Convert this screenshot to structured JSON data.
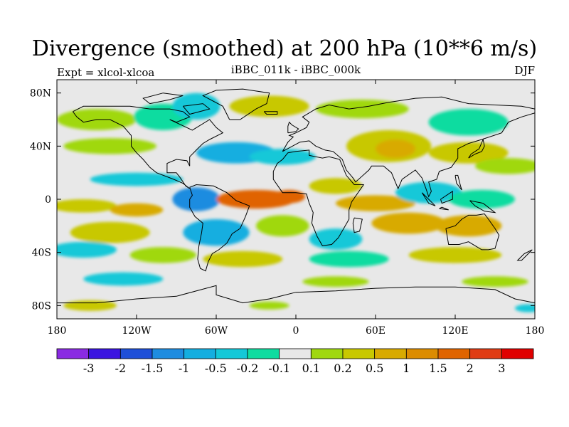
{
  "title": "Divergence (smoothed) at 200 hPa (10**6 m/s)",
  "experiment_label": "Expt = xlcol-xlcoa",
  "center_label": "iBBC_011k - iBBC_000k",
  "season_label": "DJF",
  "axes": {
    "y_ticks": [
      {
        "label": "80N",
        "lat": 80
      },
      {
        "label": "40N",
        "lat": 40
      },
      {
        "label": "0",
        "lat": 0
      },
      {
        "label": "40S",
        "lat": -40
      },
      {
        "label": "80S",
        "lat": -80
      }
    ],
    "x_ticks": [
      {
        "label": "180",
        "lon": -180
      },
      {
        "label": "120W",
        "lon": -120
      },
      {
        "label": "60W",
        "lon": -60
      },
      {
        "label": "0",
        "lon": 0
      },
      {
        "label": "60E",
        "lon": 60
      },
      {
        "label": "120E",
        "lon": 120
      },
      {
        "label": "180",
        "lon": 180
      }
    ]
  },
  "colorbar": {
    "colors": [
      "#8a2be2",
      "#3b15e0",
      "#1e4fd8",
      "#1e8ce0",
      "#14aee0",
      "#14c8d8",
      "#10dca0",
      "#e8e8e8",
      "#a0d810",
      "#c8c800",
      "#d8aa00",
      "#dc8c00",
      "#e06400",
      "#e03c14",
      "#e00000"
    ],
    "labels": [
      "-3",
      "-2",
      "-1.5",
      "-1",
      "-0.5",
      "-0.2",
      "-0.1",
      "0.1",
      "0.2",
      "0.5",
      "1",
      "1.5",
      "2",
      "3"
    ]
  },
  "map_data": {
    "background_color": "#e8e8e8",
    "colors": {
      "green": "#a0d810",
      "yellow": "#c8c800",
      "orange": "#d8aa00",
      "red": "#e06400",
      "cyan": "#14c8d8",
      "teal": "#10dca0",
      "lightblue": "#14aee0",
      "blue": "#1e8ce0"
    },
    "blobs": [
      {
        "lon": -150,
        "lat": 60,
        "rlon": 30,
        "rlat": 8,
        "color": "green"
      },
      {
        "lon": -100,
        "lat": 62,
        "rlon": 22,
        "rlat": 10,
        "color": "teal"
      },
      {
        "lon": -75,
        "lat": 70,
        "rlon": 18,
        "rlat": 10,
        "color": "cyan"
      },
      {
        "lon": -20,
        "lat": 70,
        "rlon": 30,
        "rlat": 8,
        "color": "yellow"
      },
      {
        "lon": 50,
        "lat": 68,
        "rlon": 35,
        "rlat": 7,
        "color": "green"
      },
      {
        "lon": 130,
        "lat": 58,
        "rlon": 30,
        "rlat": 10,
        "color": "teal"
      },
      {
        "lon": -140,
        "lat": 40,
        "rlon": 35,
        "rlat": 6,
        "color": "green"
      },
      {
        "lon": -45,
        "lat": 35,
        "rlon": 30,
        "rlat": 8,
        "color": "lightblue"
      },
      {
        "lon": -10,
        "lat": 32,
        "rlon": 25,
        "rlat": 6,
        "color": "cyan"
      },
      {
        "lon": 70,
        "lat": 40,
        "rlon": 32,
        "rlat": 12,
        "color": "yellow"
      },
      {
        "lon": 75,
        "lat": 38,
        "rlon": 15,
        "rlat": 7,
        "color": "orange"
      },
      {
        "lon": 130,
        "lat": 35,
        "rlon": 30,
        "rlat": 8,
        "color": "yellow"
      },
      {
        "lon": 160,
        "lat": 25,
        "rlon": 25,
        "rlat": 6,
        "color": "green"
      },
      {
        "lon": -120,
        "lat": 15,
        "rlon": 35,
        "rlat": 5,
        "color": "cyan"
      },
      {
        "lon": -75,
        "lat": 0,
        "rlon": 18,
        "rlat": 9,
        "color": "blue"
      },
      {
        "lon": -30,
        "lat": 0,
        "rlon": 30,
        "rlat": 7,
        "color": "red"
      },
      {
        "lon": -5,
        "lat": 2,
        "rlon": 12,
        "rlat": 5,
        "color": "red"
      },
      {
        "lon": 30,
        "lat": 10,
        "rlon": 20,
        "rlat": 6,
        "color": "yellow"
      },
      {
        "lon": 60,
        "lat": -3,
        "rlon": 30,
        "rlat": 6,
        "color": "orange"
      },
      {
        "lon": 100,
        "lat": 5,
        "rlon": 25,
        "rlat": 8,
        "color": "cyan"
      },
      {
        "lon": 140,
        "lat": 0,
        "rlon": 25,
        "rlat": 7,
        "color": "teal"
      },
      {
        "lon": -160,
        "lat": -5,
        "rlon": 25,
        "rlat": 5,
        "color": "yellow"
      },
      {
        "lon": -120,
        "lat": -8,
        "rlon": 20,
        "rlat": 5,
        "color": "orange"
      },
      {
        "lon": -140,
        "lat": -25,
        "rlon": 30,
        "rlat": 8,
        "color": "yellow"
      },
      {
        "lon": -60,
        "lat": -25,
        "rlon": 25,
        "rlat": 10,
        "color": "lightblue"
      },
      {
        "lon": -10,
        "lat": -20,
        "rlon": 20,
        "rlat": 8,
        "color": "green"
      },
      {
        "lon": 30,
        "lat": -30,
        "rlon": 20,
        "rlat": 8,
        "color": "cyan"
      },
      {
        "lon": 85,
        "lat": -18,
        "rlon": 28,
        "rlat": 8,
        "color": "orange"
      },
      {
        "lon": 130,
        "lat": -20,
        "rlon": 25,
        "rlat": 8,
        "color": "orange"
      },
      {
        "lon": -160,
        "lat": -38,
        "rlon": 25,
        "rlat": 6,
        "color": "cyan"
      },
      {
        "lon": -100,
        "lat": -42,
        "rlon": 25,
        "rlat": 6,
        "color": "green"
      },
      {
        "lon": -40,
        "lat": -45,
        "rlon": 30,
        "rlat": 6,
        "color": "yellow"
      },
      {
        "lon": 40,
        "lat": -45,
        "rlon": 30,
        "rlat": 6,
        "color": "teal"
      },
      {
        "lon": 120,
        "lat": -42,
        "rlon": 35,
        "rlat": 6,
        "color": "yellow"
      },
      {
        "lon": -130,
        "lat": -60,
        "rlon": 30,
        "rlat": 5,
        "color": "cyan"
      },
      {
        "lon": 30,
        "lat": -62,
        "rlon": 25,
        "rlat": 4,
        "color": "green"
      },
      {
        "lon": 150,
        "lat": -62,
        "rlon": 25,
        "rlat": 4,
        "color": "green"
      },
      {
        "lon": -155,
        "lat": -80,
        "rlon": 20,
        "rlat": 4,
        "color": "yellow"
      },
      {
        "lon": -20,
        "lat": -80,
        "rlon": 15,
        "rlat": 3,
        "color": "green"
      },
      {
        "lon": 175,
        "lat": -82,
        "rlon": 10,
        "rlat": 3,
        "color": "cyan"
      }
    ],
    "coastlines": [
      [
        [
          -168,
          66
        ],
        [
          -160,
          70
        ],
        [
          -140,
          70
        ],
        [
          -125,
          70
        ],
        [
          -110,
          68
        ],
        [
          -95,
          68
        ],
        [
          -85,
          66
        ],
        [
          -80,
          62
        ],
        [
          -90,
          58
        ],
        [
          -95,
          60
        ],
        [
          -78,
          52
        ],
        [
          -65,
          60
        ],
        [
          -60,
          54
        ],
        [
          -55,
          50
        ],
        [
          -65,
          45
        ],
        [
          -70,
          42
        ],
        [
          -75,
          37
        ],
        [
          -80,
          32
        ],
        [
          -80,
          25
        ],
        [
          -82,
          29
        ],
        [
          -90,
          30
        ],
        [
          -97,
          27
        ],
        [
          -97,
          20
        ],
        [
          -90,
          20
        ],
        [
          -87,
          16
        ],
        [
          -83,
          10
        ],
        [
          -80,
          8
        ],
        [
          -85,
          12
        ],
        [
          -92,
          15
        ],
        [
          -105,
          20
        ],
        [
          -110,
          24
        ],
        [
          -115,
          30
        ],
        [
          -120,
          35
        ],
        [
          -124,
          40
        ],
        [
          -124,
          48
        ],
        [
          -130,
          55
        ],
        [
          -140,
          60
        ],
        [
          -150,
          60
        ],
        [
          -160,
          58
        ],
        [
          -165,
          62
        ],
        [
          -168,
          66
        ]
      ],
      [
        [
          -80,
          9
        ],
        [
          -75,
          11
        ],
        [
          -62,
          10
        ],
        [
          -52,
          5
        ],
        [
          -45,
          -1
        ],
        [
          -35,
          -5
        ],
        [
          -38,
          -13
        ],
        [
          -42,
          -22
        ],
        [
          -48,
          -26
        ],
        [
          -52,
          -33
        ],
        [
          -58,
          -38
        ],
        [
          -63,
          -41
        ],
        [
          -66,
          -47
        ],
        [
          -68,
          -54
        ],
        [
          -72,
          -52
        ],
        [
          -74,
          -45
        ],
        [
          -73,
          -35
        ],
        [
          -71,
          -25
        ],
        [
          -70,
          -18
        ],
        [
          -76,
          -13
        ],
        [
          -80,
          -6
        ],
        [
          -80,
          0
        ],
        [
          -78,
          3
        ],
        [
          -80,
          9
        ]
      ],
      [
        [
          -50,
          60
        ],
        [
          -42,
          60
        ],
        [
          -30,
          68
        ],
        [
          -22,
          72
        ],
        [
          -20,
          80
        ],
        [
          -40,
          83
        ],
        [
          -60,
          82
        ],
        [
          -70,
          78
        ],
        [
          -55,
          70
        ],
        [
          -50,
          60
        ]
      ],
      [
        [
          -10,
          36
        ],
        [
          -6,
          43
        ],
        [
          -2,
          47
        ],
        [
          -5,
          48
        ],
        [
          0,
          50
        ],
        [
          8,
          54
        ],
        [
          10,
          58
        ],
        [
          5,
          62
        ],
        [
          15,
          68
        ],
        [
          25,
          71
        ],
        [
          40,
          68
        ],
        [
          55,
          70
        ],
        [
          70,
          73
        ],
        [
          90,
          76
        ],
        [
          110,
          77
        ],
        [
          130,
          72
        ],
        [
          150,
          71
        ],
        [
          170,
          70
        ],
        [
          180,
          68
        ],
        [
          180,
          65
        ],
        [
          170,
          62
        ],
        [
          160,
          58
        ],
        [
          155,
          50
        ],
        [
          140,
          45
        ],
        [
          130,
          42
        ],
        [
          122,
          38
        ],
        [
          122,
          31
        ],
        [
          117,
          24
        ],
        [
          108,
          21
        ],
        [
          106,
          15
        ],
        [
          100,
          13
        ],
        [
          102,
          6
        ],
        [
          100,
          2
        ],
        [
          98,
          8
        ],
        [
          95,
          16
        ],
        [
          90,
          22
        ],
        [
          80,
          15
        ],
        [
          77,
          8
        ],
        [
          72,
          20
        ],
        [
          66,
          25
        ],
        [
          57,
          25
        ],
        [
          55,
          22
        ],
        [
          45,
          13
        ],
        [
          43,
          16
        ],
        [
          38,
          22
        ],
        [
          35,
          30
        ],
        [
          28,
          36
        ],
        [
          22,
          37
        ],
        [
          15,
          40
        ],
        [
          10,
          44
        ],
        [
          3,
          43
        ],
        [
          -10,
          36
        ]
      ],
      [
        [
          -17,
          21
        ],
        [
          -17,
          15
        ],
        [
          -10,
          5
        ],
        [
          0,
          5
        ],
        [
          8,
          4
        ],
        [
          10,
          -3
        ],
        [
          13,
          -10
        ],
        [
          12,
          -18
        ],
        [
          16,
          -28
        ],
        [
          20,
          -35
        ],
        [
          27,
          -34
        ],
        [
          32,
          -29
        ],
        [
          36,
          -22
        ],
        [
          40,
          -15
        ],
        [
          40,
          -8
        ],
        [
          42,
          -2
        ],
        [
          51,
          11
        ],
        [
          44,
          11
        ],
        [
          38,
          18
        ],
        [
          33,
          30
        ],
        [
          25,
          32
        ],
        [
          20,
          31
        ],
        [
          10,
          33
        ],
        [
          10,
          37
        ],
        [
          0,
          36
        ],
        [
          -6,
          35
        ],
        [
          -10,
          30
        ],
        [
          -14,
          27
        ],
        [
          -17,
          21
        ]
      ],
      [
        [
          113,
          -22
        ],
        [
          115,
          -34
        ],
        [
          123,
          -34
        ],
        [
          130,
          -32
        ],
        [
          135,
          -35
        ],
        [
          140,
          -38
        ],
        [
          145,
          -38
        ],
        [
          150,
          -37
        ],
        [
          153,
          -27
        ],
        [
          150,
          -22
        ],
        [
          145,
          -15
        ],
        [
          142,
          -11
        ],
        [
          136,
          -12
        ],
        [
          130,
          -12
        ],
        [
          125,
          -15
        ],
        [
          120,
          -20
        ],
        [
          113,
          -22
        ]
      ],
      [
        [
          -180,
          -78
        ],
        [
          -150,
          -78
        ],
        [
          -120,
          -75
        ],
        [
          -90,
          -73
        ],
        [
          -60,
          -65
        ],
        [
          -60,
          -72
        ],
        [
          -40,
          -78
        ],
        [
          -20,
          -75
        ],
        [
          0,
          -70
        ],
        [
          30,
          -69
        ],
        [
          60,
          -67
        ],
        [
          90,
          -66
        ],
        [
          120,
          -66
        ],
        [
          150,
          -68
        ],
        [
          165,
          -75
        ],
        [
          180,
          -78
        ]
      ],
      [
        [
          -6,
          50
        ],
        [
          0,
          51
        ],
        [
          2,
          53
        ],
        [
          -3,
          56
        ],
        [
          -5,
          58
        ],
        [
          -6,
          55
        ],
        [
          -6,
          50
        ]
      ],
      [
        [
          130,
          31
        ],
        [
          135,
          34
        ],
        [
          140,
          36
        ],
        [
          142,
          40
        ],
        [
          141,
          45
        ],
        [
          138,
          38
        ],
        [
          132,
          34
        ],
        [
          130,
          31
        ]
      ],
      [
        [
          95,
          5
        ],
        [
          100,
          0
        ],
        [
          105,
          -5
        ],
        [
          100,
          -3
        ],
        [
          95,
          5
        ]
      ],
      [
        [
          108,
          -7
        ],
        [
          115,
          -8
        ],
        [
          110,
          -6
        ],
        [
          108,
          -7
        ]
      ],
      [
        [
          109,
          0
        ],
        [
          118,
          6
        ],
        [
          118,
          0
        ],
        [
          110,
          -3
        ],
        [
          109,
          0
        ]
      ],
      [
        [
          131,
          -1
        ],
        [
          141,
          -3
        ],
        [
          150,
          -10
        ],
        [
          142,
          -9
        ],
        [
          135,
          -5
        ],
        [
          131,
          -1
        ]
      ],
      [
        [
          172,
          -41
        ],
        [
          178,
          -38
        ],
        [
          175,
          -41
        ],
        [
          170,
          -46
        ],
        [
          167,
          -46
        ],
        [
          172,
          -41
        ]
      ],
      [
        [
          44,
          -14
        ],
        [
          50,
          -15
        ],
        [
          48,
          -24
        ],
        [
          44,
          -25
        ],
        [
          43,
          -18
        ],
        [
          44,
          -14
        ]
      ],
      [
        [
          -24,
          66
        ],
        [
          -14,
          66
        ],
        [
          -14,
          64
        ],
        [
          -22,
          64
        ],
        [
          -24,
          66
        ]
      ],
      [
        [
          120,
          18
        ],
        [
          122,
          18
        ],
        [
          124,
          10
        ],
        [
          125,
          7
        ],
        [
          121,
          12
        ],
        [
          120,
          18
        ]
      ],
      [
        [
          -85,
          70
        ],
        [
          -70,
          72
        ],
        [
          -65,
          68
        ],
        [
          -80,
          64
        ],
        [
          -85,
          70
        ]
      ],
      [
        [
          -110,
          72
        ],
        [
          -95,
          75
        ],
        [
          -85,
          78
        ],
        [
          -100,
          80
        ],
        [
          -115,
          76
        ],
        [
          -110,
          72
        ]
      ]
    ]
  }
}
